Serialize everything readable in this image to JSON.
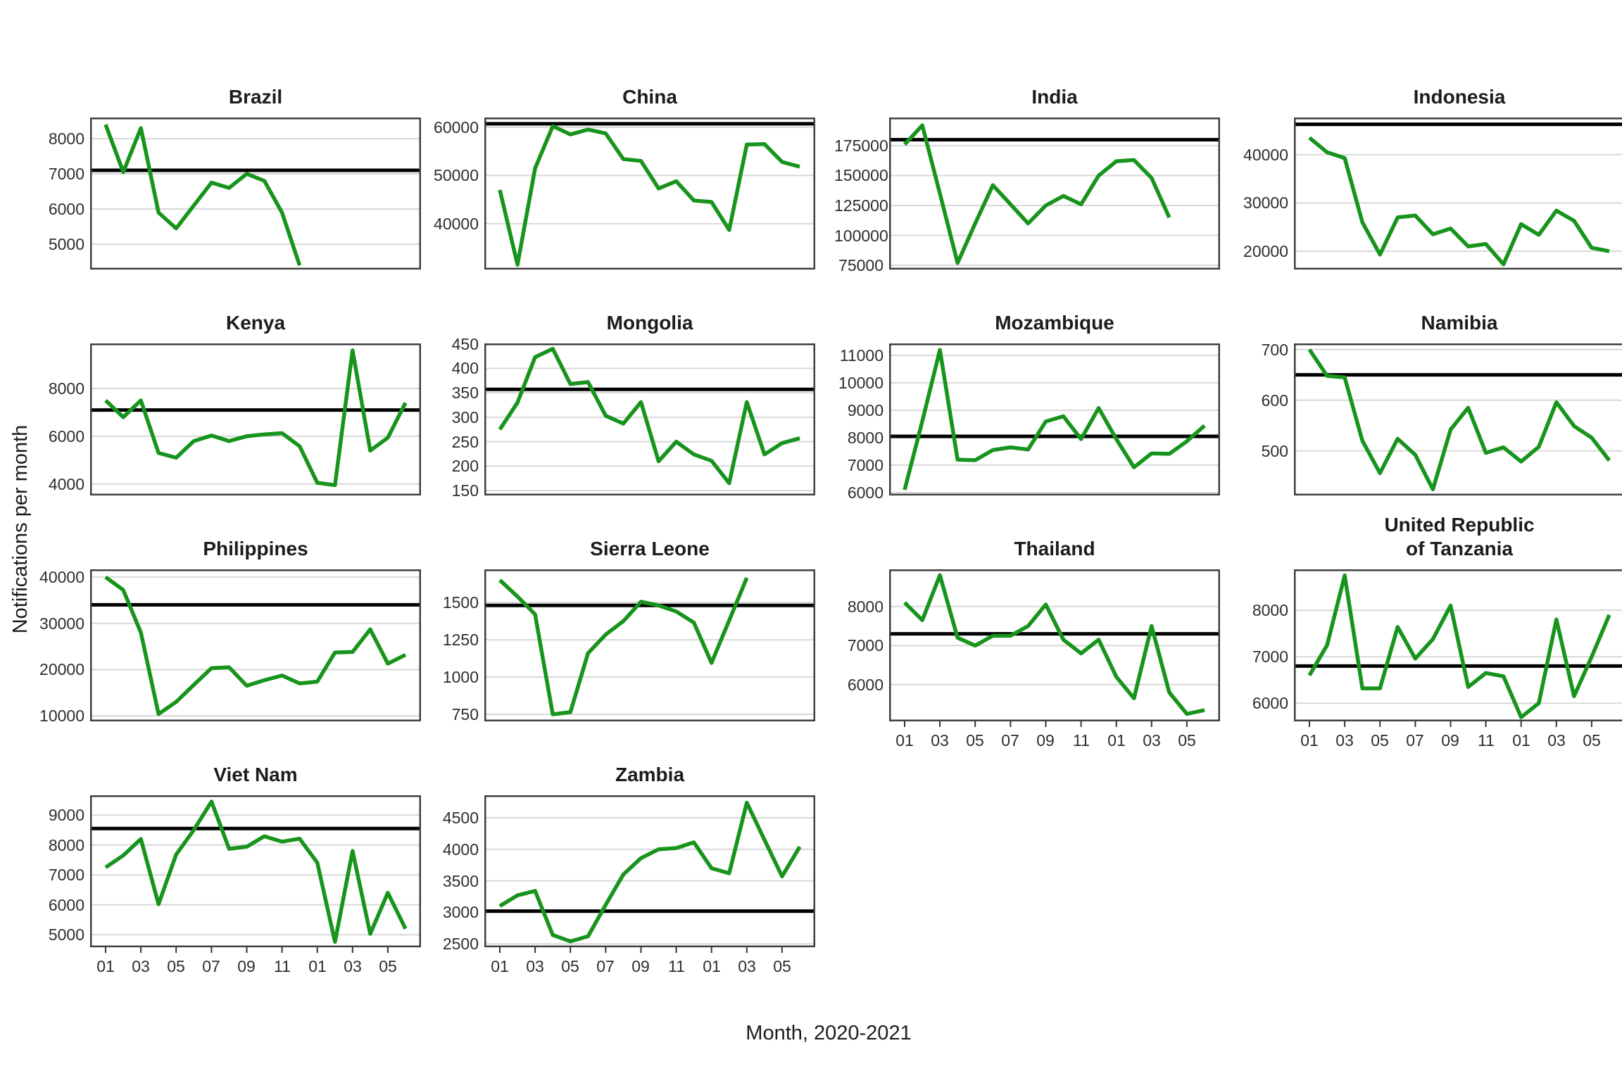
{
  "figure": {
    "y_axis_title": "Notifications per month",
    "x_axis_title": "Month, 2020-2021"
  },
  "colors": {
    "line": "#17941c",
    "baseline": "#000000",
    "grid": "#d8d8d8",
    "border": "#3f3f3f",
    "tick_text": "#2e2e2e",
    "title_text": "#1c1c1c",
    "background": "#ffffff"
  },
  "x_axis": {
    "n_points": 18,
    "tick_positions": [
      0,
      2,
      4,
      6,
      8,
      10,
      12,
      14,
      16
    ],
    "tick_labels": [
      "01",
      "03",
      "05",
      "07",
      "09",
      "11",
      "01",
      "03",
      "05"
    ]
  },
  "chart_data": [
    {
      "type": "line",
      "title": "Brazil",
      "row": 1,
      "col": 1,
      "show_x": false,
      "values": [
        8400,
        7050,
        8300,
        5900,
        5450,
        6100,
        6750,
        6600,
        7000,
        6800,
        5900,
        4400
      ],
      "baseline": 7100,
      "yticks": [
        8000,
        7000,
        6000,
        5000
      ],
      "ylim": [
        4280,
        8600
      ]
    },
    {
      "type": "line",
      "title": "China",
      "row": 1,
      "col": 2,
      "show_x": false,
      "values": [
        47000,
        31500,
        51500,
        60200,
        58500,
        59500,
        58700,
        53400,
        53000,
        47300,
        48800,
        44800,
        44500,
        38700,
        56400,
        56500,
        52800,
        51800
      ],
      "baseline": 60700,
      "yticks": [
        60000,
        50000,
        40000
      ],
      "ylim": [
        30500,
        62000
      ]
    },
    {
      "type": "line",
      "title": "India",
      "row": 1,
      "col": 3,
      "show_x": false,
      "values": [
        176000,
        192000,
        135000,
        77000,
        110000,
        142000,
        126000,
        110000,
        125000,
        133000,
        126000,
        150000,
        162000,
        163000,
        148000,
        115000
      ],
      "baseline": 180000,
      "yticks": [
        175000,
        150000,
        125000,
        100000,
        75000
      ],
      "ylim": [
        71500,
        198500
      ]
    },
    {
      "type": "line",
      "title": "Indonesia",
      "row": 1,
      "col": 4,
      "show_x": false,
      "values": [
        43500,
        40500,
        39300,
        26000,
        19300,
        27000,
        27400,
        23500,
        24700,
        21000,
        21500,
        17300,
        25600,
        23400,
        28400,
        26300,
        20700,
        20000
      ],
      "baseline": 46300,
      "yticks": [
        40000,
        30000,
        20000
      ],
      "ylim": [
        16200,
        47700
      ]
    },
    {
      "type": "line",
      "title": "Kenya",
      "row": 2,
      "col": 1,
      "show_x": false,
      "values": [
        7500,
        6800,
        7500,
        5300,
        5100,
        5800,
        6030,
        5800,
        6000,
        6080,
        6130,
        5580,
        4050,
        3950,
        9600,
        5400,
        5940,
        7400
      ],
      "baseline": 7100,
      "yticks": [
        8000,
        6000,
        4000
      ],
      "ylim": [
        3520,
        9890
      ]
    },
    {
      "type": "line",
      "title": "Mongolia",
      "row": 2,
      "col": 2,
      "show_x": false,
      "values": [
        275,
        330,
        423,
        440,
        368,
        372,
        303,
        287,
        331,
        210,
        250,
        224,
        211,
        165,
        331,
        224,
        247,
        257
      ],
      "baseline": 357,
      "yticks": [
        450,
        400,
        350,
        300,
        250,
        200,
        150
      ],
      "ylim": [
        140,
        451
      ]
    },
    {
      "type": "line",
      "title": "Mozambique",
      "row": 2,
      "col": 3,
      "show_x": false,
      "values": [
        6100,
        8600,
        11200,
        7200,
        7180,
        7550,
        7650,
        7570,
        8590,
        8780,
        7950,
        9080,
        7950,
        6920,
        7430,
        7410,
        7870,
        8440
      ],
      "baseline": 8050,
      "yticks": [
        11000,
        10000,
        9000,
        8000,
        7000,
        6000
      ],
      "ylim": [
        5895,
        11435
      ]
    },
    {
      "type": "line",
      "title": "Namibia",
      "row": 2,
      "col": 4,
      "show_x": false,
      "values": [
        700,
        648,
        645,
        520,
        456,
        524,
        492,
        424,
        542,
        585,
        496,
        507,
        479,
        508,
        596,
        549,
        526,
        481
      ],
      "baseline": 650,
      "yticks": [
        700,
        600,
        500
      ],
      "ylim": [
        412,
        712
      ]
    },
    {
      "type": "line",
      "title": "Philippines",
      "row": 3,
      "col": 1,
      "show_x": false,
      "values": [
        40000,
        37200,
        28000,
        10400,
        13000,
        16700,
        20300,
        20500,
        16500,
        17700,
        18700,
        17000,
        17400,
        23700,
        23800,
        28700,
        21300,
        23200
      ],
      "baseline": 34000,
      "yticks": [
        40000,
        30000,
        20000,
        10000
      ],
      "ylim": [
        8800,
        41670
      ]
    },
    {
      "type": "line",
      "title": "Sierra Leone",
      "row": 3,
      "col": 2,
      "show_x": false,
      "values": [
        1650,
        1540,
        1420,
        750,
        765,
        1160,
        1285,
        1375,
        1505,
        1480,
        1440,
        1365,
        1095,
        1380,
        1665
      ],
      "baseline": 1480,
      "yticks": [
        1500,
        1250,
        1000,
        750
      ],
      "ylim": [
        703,
        1722
      ]
    },
    {
      "type": "line",
      "title": "Thailand",
      "row": 3,
      "col": 3,
      "show_x": true,
      "values": [
        8100,
        7650,
        8800,
        7200,
        7000,
        7250,
        7250,
        7500,
        8050,
        7150,
        6800,
        7150,
        6200,
        5650,
        7500,
        5800,
        5250,
        5350
      ],
      "baseline": 7300,
      "yticks": [
        8000,
        7000,
        6000
      ],
      "ylim": [
        5060,
        8950
      ]
    },
    {
      "type": "line",
      "title": "United Republic",
      "title2": "of Tanzania",
      "row": 3,
      "col": 4,
      "show_x": true,
      "values": [
        6600,
        7250,
        8750,
        6320,
        6320,
        7640,
        6960,
        7380,
        8100,
        6350,
        6650,
        6580,
        5700,
        6000,
        7800,
        6150,
        7000,
        7900
      ],
      "baseline": 6800,
      "yticks": [
        8000,
        7000,
        6000
      ],
      "ylim": [
        5610,
        8880
      ]
    },
    {
      "type": "line",
      "title": "Viet Nam",
      "row": 4,
      "col": 1,
      "show_x": true,
      "values": [
        7250,
        7650,
        8200,
        6020,
        7680,
        8500,
        9450,
        7870,
        7940,
        8290,
        8110,
        8210,
        7410,
        4760,
        7800,
        5030,
        6400,
        5200
      ],
      "baseline": 8550,
      "yticks": [
        9000,
        8000,
        7000,
        6000,
        5000
      ],
      "ylim": [
        4580,
        9660
      ]
    },
    {
      "type": "line",
      "title": "Zambia",
      "row": 4,
      "col": 2,
      "show_x": true,
      "values": [
        3100,
        3270,
        3340,
        2640,
        2540,
        2620,
        3120,
        3600,
        3860,
        4000,
        4020,
        4110,
        3700,
        3620,
        4740,
        4150,
        3570,
        4040
      ],
      "baseline": 3020,
      "yticks": [
        4500,
        4000,
        3500,
        3000,
        2500
      ],
      "ylim": [
        2446,
        4857
      ]
    }
  ]
}
